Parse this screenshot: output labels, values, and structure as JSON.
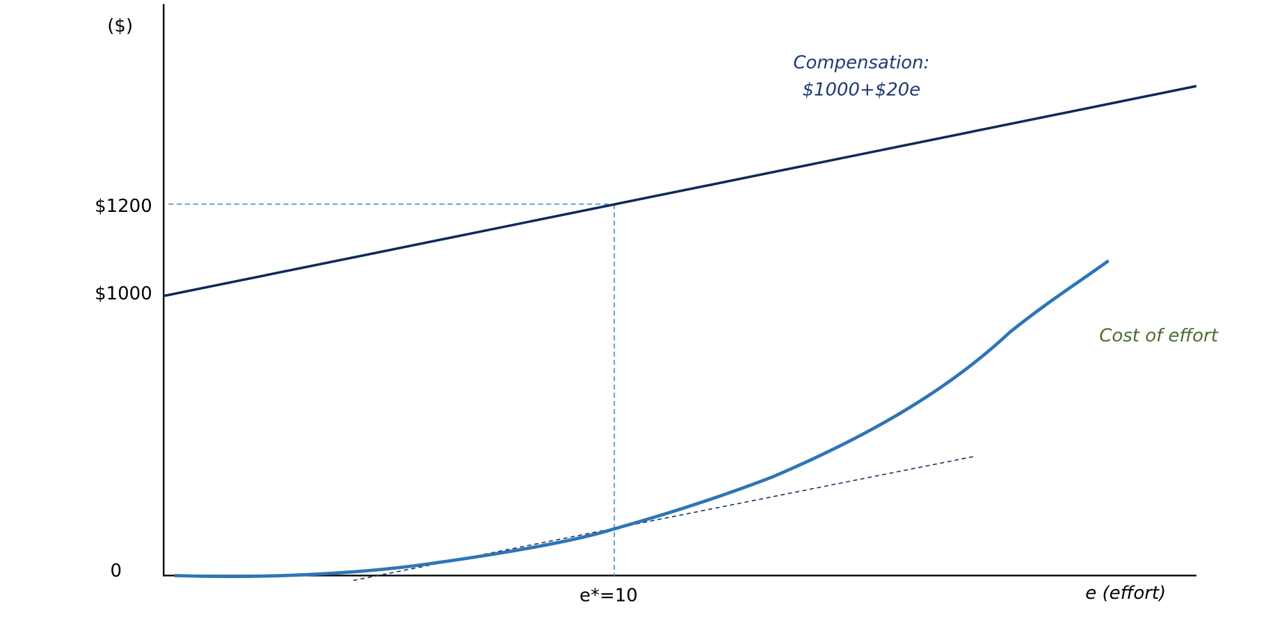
{
  "diagram": {
    "y_axis_label": "($)",
    "y_labels": [
      "$1200",
      "$1000",
      "0"
    ],
    "x_labels": [
      "e*=10",
      "e (effort)"
    ],
    "compensation_label": [
      "Compensation:",
      "$1000+$20e"
    ],
    "cost_label": "Cost of effort"
  }
}
